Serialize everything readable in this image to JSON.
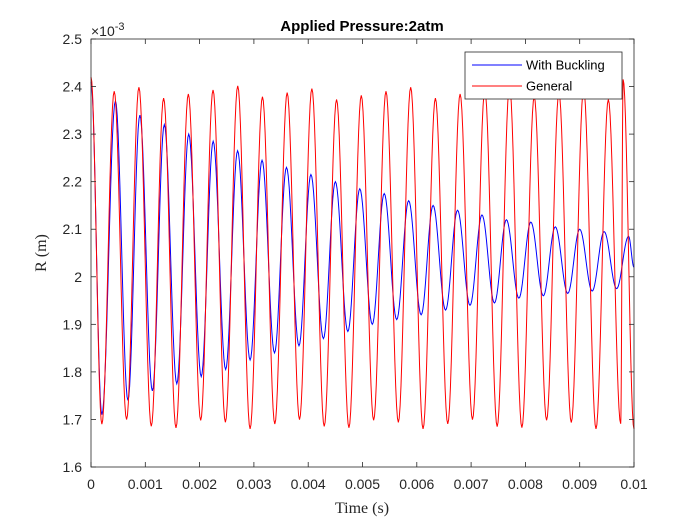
{
  "chart_data": {
    "type": "line",
    "title": "Applied Pressure:2atm",
    "xlabel": "Time (s)",
    "ylabel": "R (m)",
    "y_multiplier_base": "×10",
    "y_multiplier_exponent": "-3",
    "xlim": [
      0,
      0.01
    ],
    "ylim": [
      1.6,
      2.5
    ],
    "x_ticks": [
      "0",
      "0.001",
      "0.002",
      "0.003",
      "0.004",
      "0.005",
      "0.006",
      "0.007",
      "0.008",
      "0.009",
      "0.01"
    ],
    "y_ticks": [
      "1.6",
      "1.7",
      "1.8",
      "1.9",
      "2",
      "2.1",
      "2.2",
      "2.3",
      "2.4",
      "2.5"
    ],
    "grid": false,
    "legend_position": "top-right",
    "series": [
      {
        "name": "With Buckling",
        "color": "#0000ff",
        "period_s": 0.000455,
        "start_value": 2.41,
        "peaks": [
          [
            0.00045,
            2.37
          ],
          [
            0.0009,
            2.34
          ],
          [
            0.00135,
            2.32
          ],
          [
            0.0018,
            2.3
          ],
          [
            0.00225,
            2.285
          ],
          [
            0.0027,
            2.265
          ],
          [
            0.00315,
            2.245
          ],
          [
            0.0036,
            2.23
          ],
          [
            0.00405,
            2.215
          ],
          [
            0.0045,
            2.2
          ],
          [
            0.00495,
            2.185
          ],
          [
            0.0054,
            2.175
          ],
          [
            0.00585,
            2.16
          ],
          [
            0.0063,
            2.15
          ],
          [
            0.00675,
            2.14
          ],
          [
            0.0072,
            2.13
          ],
          [
            0.00765,
            2.12
          ],
          [
            0.0081,
            2.115
          ],
          [
            0.00855,
            2.105
          ],
          [
            0.009,
            2.1
          ],
          [
            0.00945,
            2.095
          ],
          [
            0.0099,
            2.085
          ]
        ],
        "troughs": [
          [
            0.0002,
            1.71
          ],
          [
            0.00068,
            1.74
          ],
          [
            0.00113,
            1.76
          ],
          [
            0.00158,
            1.775
          ],
          [
            0.00203,
            1.79
          ],
          [
            0.00248,
            1.805
          ],
          [
            0.00293,
            1.825
          ],
          [
            0.00338,
            1.84
          ],
          [
            0.00383,
            1.855
          ],
          [
            0.00428,
            1.87
          ],
          [
            0.00473,
            1.885
          ],
          [
            0.00518,
            1.9
          ],
          [
            0.00563,
            1.91
          ],
          [
            0.00608,
            1.92
          ],
          [
            0.00653,
            1.93
          ],
          [
            0.00698,
            1.94
          ],
          [
            0.00743,
            1.945
          ],
          [
            0.00788,
            1.955
          ],
          [
            0.00833,
            1.96
          ],
          [
            0.00878,
            1.965
          ],
          [
            0.00923,
            1.97
          ],
          [
            0.00968,
            1.975
          ]
        ]
      },
      {
        "name": "General",
        "color": "#ff0000",
        "period_s": 0.000455,
        "start_value": 2.42,
        "end_value": 1.68,
        "peak_value_range": [
          2.37,
          2.415
        ],
        "trough_value_range": [
          1.68,
          1.7
        ]
      }
    ]
  }
}
